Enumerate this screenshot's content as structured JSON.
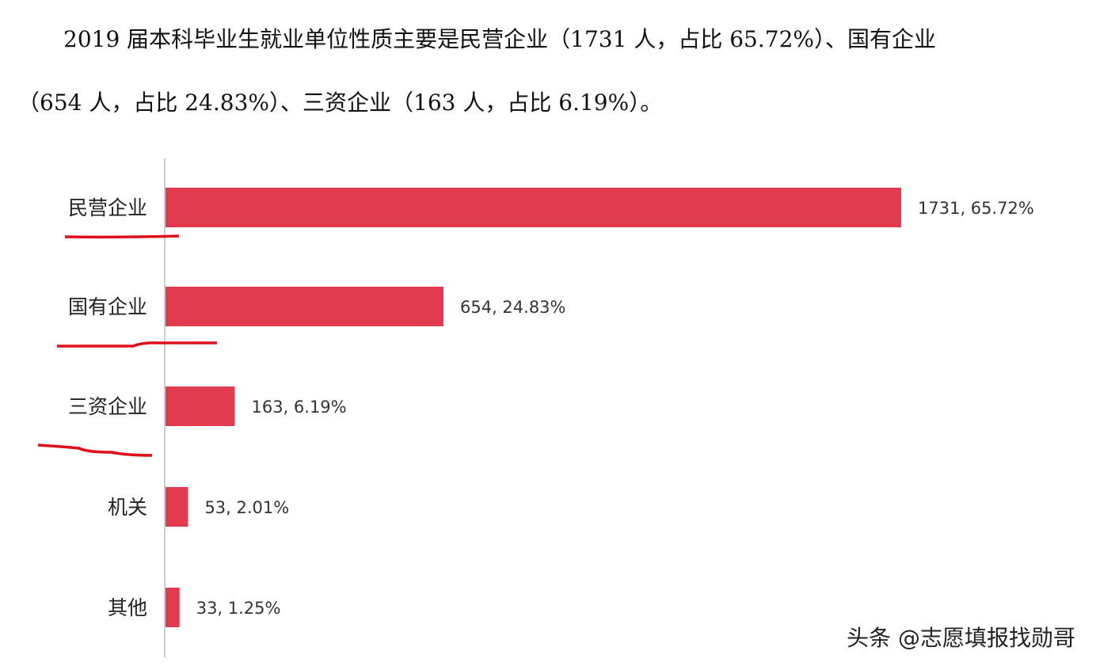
{
  "paragraph": {
    "line1": "2019 届本科毕业生就业单位性质主要是民营企业（1731 人，占比 65.72%）、国有企业",
    "line2": "（654 人，占比 24.83%）、三资企业（163 人，占比 6.19%）。"
  },
  "chart_data": {
    "type": "bar",
    "orientation": "horizontal",
    "categories": [
      "民营企业",
      "国有企业",
      "三资企业",
      "机关",
      "其他"
    ],
    "values": [
      1731,
      654,
      163,
      53,
      33
    ],
    "percentages": [
      "65.72%",
      "24.83%",
      "6.19%",
      "2.01%",
      "1.25%"
    ],
    "data_labels": [
      "1731, 65.72%",
      "654, 24.83%",
      "163, 6.19%",
      "53, 2.01%",
      "33, 1.25%"
    ],
    "underlined_categories": [
      "民营企业",
      "国有企业",
      "三资企业"
    ],
    "grid": false,
    "bar_color": "#e03a4f",
    "underline_color": "#e0101a"
  },
  "watermark": "头条 @志愿填报找勋哥"
}
